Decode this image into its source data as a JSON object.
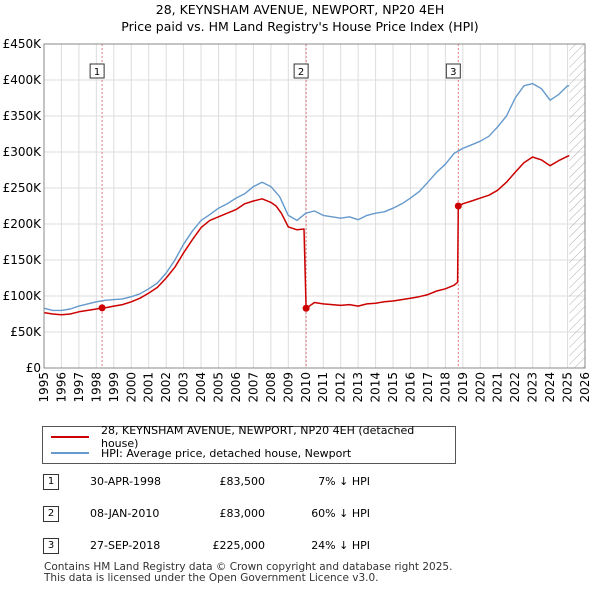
{
  "header": {
    "title_line1": "28, KEYNSHAM AVENUE, NEWPORT, NP20 4EH",
    "title_line2": "Price paid vs. HM Land Registry's House Price Index (HPI)"
  },
  "chart_data": {
    "type": "line",
    "title": "Price paid vs. HM Land Registry's House Price Index (HPI)",
    "xlabel": "",
    "ylabel": "",
    "xlim": [
      1995,
      2026
    ],
    "ylim": [
      0,
      450000
    ],
    "y_ticks": [
      0,
      50000,
      100000,
      150000,
      200000,
      250000,
      300000,
      350000,
      400000,
      450000
    ],
    "y_tick_labels": [
      "£0",
      "£50K",
      "£100K",
      "£150K",
      "£200K",
      "£250K",
      "£300K",
      "£350K",
      "£400K",
      "£450K"
    ],
    "x_ticks": [
      1995,
      1996,
      1997,
      1998,
      1999,
      2000,
      2001,
      2002,
      2003,
      2004,
      2005,
      2006,
      2007,
      2008,
      2009,
      2010,
      2011,
      2012,
      2013,
      2014,
      2015,
      2016,
      2017,
      2018,
      2019,
      2020,
      2021,
      2022,
      2023,
      2024,
      2025,
      2026
    ],
    "grid": true,
    "hatched_region_start": 2025.1,
    "colors": {
      "price": "#cc0000",
      "hpi": "#6699cc",
      "sale_marker": "#cc0000",
      "vline": "#dd4444"
    },
    "series": [
      {
        "name": "28, KEYNSHAM AVENUE, NEWPORT, NP20 4EH (detached house)",
        "x": [
          1995,
          1995.5,
          1996,
          1996.5,
          1997,
          1997.5,
          1998.0,
          1998.33,
          1998.6,
          1999,
          1999.5,
          2000,
          2000.5,
          2001,
          2001.5,
          2002,
          2002.5,
          2003,
          2003.5,
          2004,
          2004.5,
          2005,
          2005.5,
          2006,
          2006.5,
          2007,
          2007.5,
          2008,
          2008.3,
          2008.6,
          2009,
          2009.5,
          2009.9,
          2010.02,
          2010.5,
          2011,
          2011.5,
          2012,
          2012.5,
          2013,
          2013.5,
          2014,
          2014.5,
          2015,
          2015.5,
          2016,
          2016.5,
          2017,
          2017.5,
          2018,
          2018.5,
          2018.7,
          2018.74,
          2019,
          2019.5,
          2020,
          2020.5,
          2021,
          2021.5,
          2022,
          2022.5,
          2023,
          2023.5,
          2024,
          2024.5,
          2025,
          2025.1
        ],
        "values": [
          77000,
          75000,
          74000,
          75000,
          78000,
          80000,
          82000,
          83500,
          84000,
          86000,
          88000,
          92000,
          97000,
          104000,
          112000,
          125000,
          140000,
          160000,
          178000,
          195000,
          205000,
          210000,
          215000,
          220000,
          228000,
          232000,
          235000,
          230000,
          225000,
          215000,
          196000,
          192000,
          193000,
          83000,
          91000,
          89000,
          88000,
          87000,
          88000,
          86000,
          89000,
          90000,
          92000,
          93000,
          95000,
          97000,
          99000,
          102000,
          107000,
          110000,
          115000,
          119000,
          225000,
          228000,
          232000,
          236000,
          240000,
          247000,
          258000,
          272000,
          285000,
          293000,
          289000,
          281000,
          288000,
          294000,
          295000
        ]
      },
      {
        "name": "HPI: Average price, detached house, Newport",
        "x": [
          1995,
          1995.5,
          1996,
          1996.5,
          1997,
          1997.5,
          1998,
          1998.5,
          1999,
          1999.5,
          2000,
          2000.5,
          2001,
          2001.5,
          2002,
          2002.5,
          2003,
          2003.5,
          2004,
          2004.5,
          2005,
          2005.5,
          2006,
          2006.5,
          2007,
          2007.5,
          2008,
          2008.5,
          2009,
          2009.5,
          2010,
          2010.5,
          2011,
          2011.5,
          2012,
          2012.5,
          2013,
          2013.5,
          2014,
          2014.5,
          2015,
          2015.5,
          2016,
          2016.5,
          2017,
          2017.5,
          2018,
          2018.5,
          2019,
          2019.5,
          2020,
          2020.5,
          2021,
          2021.5,
          2022,
          2022.5,
          2023,
          2023.5,
          2024,
          2024.5,
          2025,
          2025.1
        ],
        "values": [
          83000,
          80000,
          80000,
          82000,
          86000,
          89000,
          92000,
          94000,
          95000,
          96000,
          99000,
          103000,
          110000,
          118000,
          132000,
          150000,
          172000,
          190000,
          205000,
          213000,
          222000,
          228000,
          236000,
          242000,
          252000,
          258000,
          252000,
          238000,
          212000,
          205000,
          215000,
          218000,
          212000,
          210000,
          208000,
          210000,
          206000,
          212000,
          215000,
          217000,
          222000,
          228000,
          236000,
          245000,
          258000,
          272000,
          283000,
          298000,
          305000,
          310000,
          315000,
          322000,
          335000,
          350000,
          375000,
          392000,
          395000,
          388000,
          372000,
          380000,
          392000,
          392000
        ]
      }
    ],
    "sales": [
      {
        "id": "1",
        "x": 1998.33,
        "value": 83500,
        "date": "30-APR-1998",
        "price": "£83,500",
        "hpi": "7% ↓ HPI"
      },
      {
        "id": "2",
        "x": 2010.02,
        "value": 83000,
        "date": "08-JAN-2010",
        "price": "£83,000",
        "hpi": "60% ↓ HPI"
      },
      {
        "id": "3",
        "x": 2018.74,
        "value": 225000,
        "date": "27-SEP-2018",
        "price": "£225,000",
        "hpi": "24% ↓ HPI"
      }
    ]
  },
  "legend": {
    "price_label": "28, KEYNSHAM AVENUE, NEWPORT, NP20 4EH (detached house)",
    "hpi_label": "HPI: Average price, detached house, Newport"
  },
  "footer": {
    "line1": "Contains HM Land Registry data © Crown copyright and database right 2025.",
    "line2": "This data is licensed under the Open Government Licence v3.0."
  }
}
